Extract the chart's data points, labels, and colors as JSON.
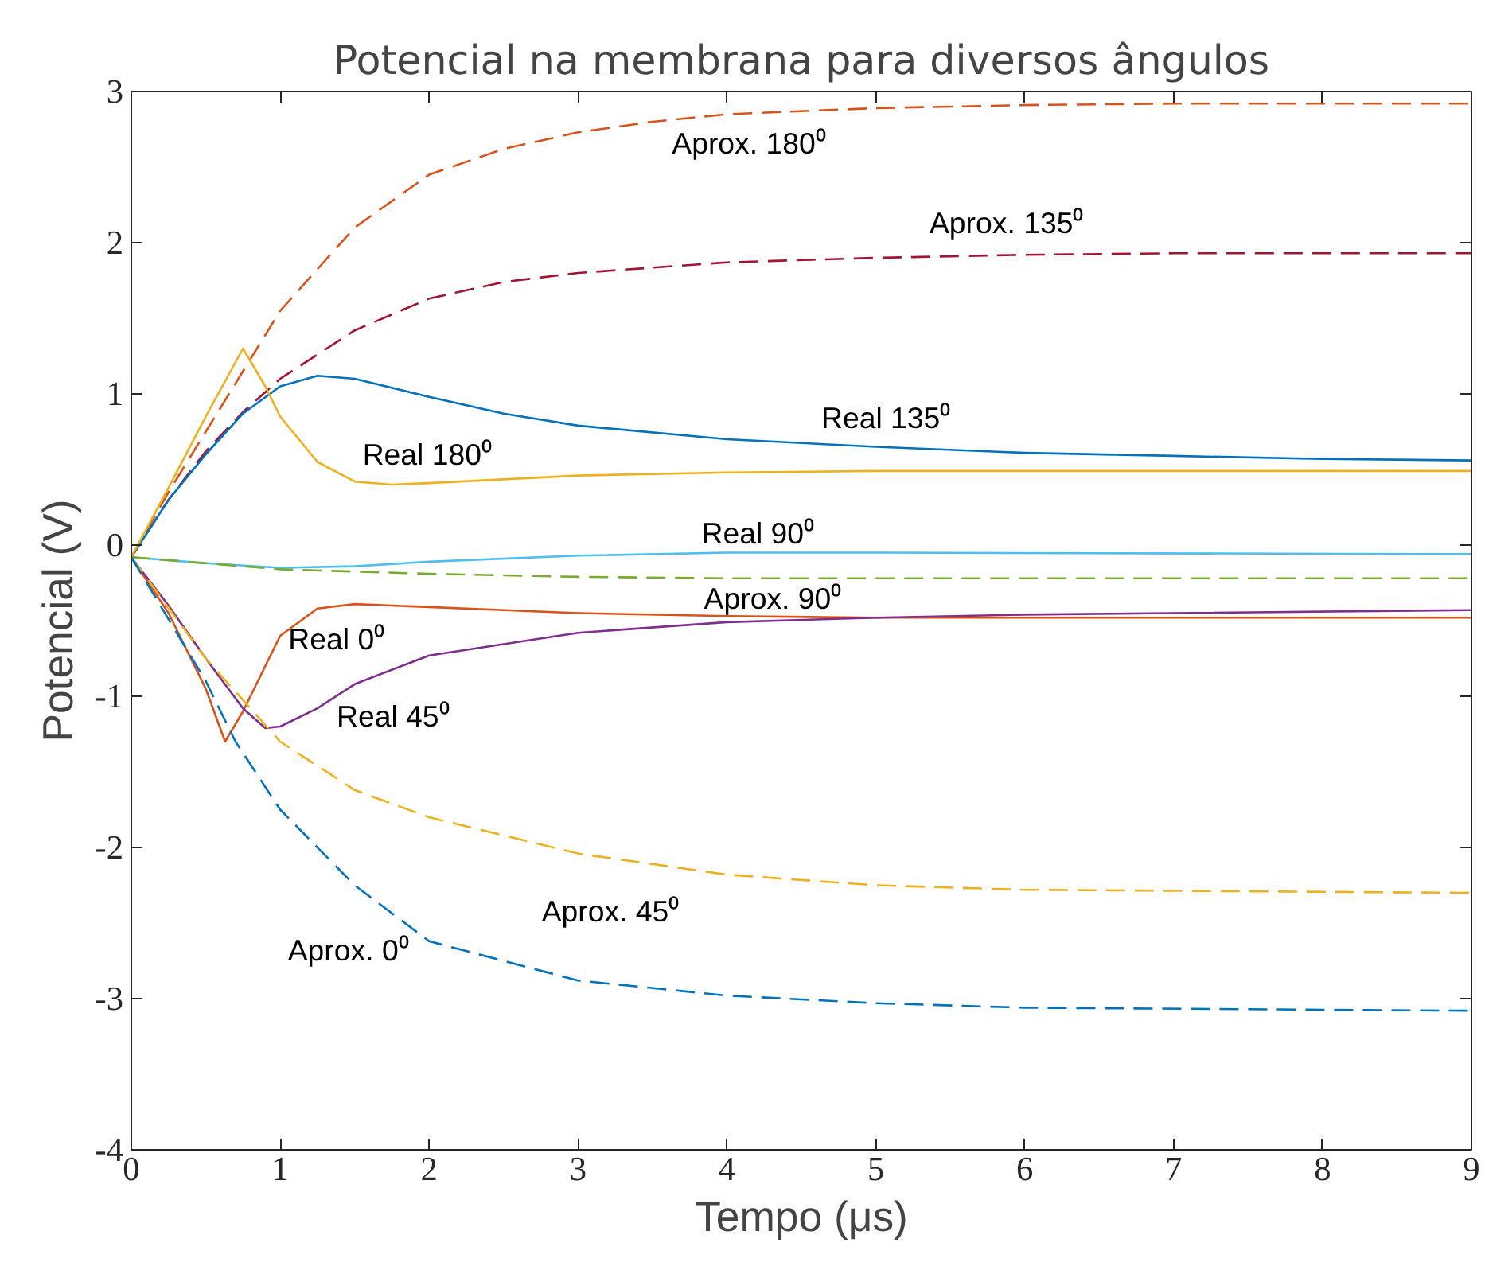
{
  "chart_data": {
    "type": "line",
    "title": "Potencial na membrana para diversos ângulos",
    "xlabel": "Tempo (μs)",
    "ylabel": "Potencial (V)",
    "xlim": [
      0,
      9
    ],
    "ylim": [
      -4,
      3
    ],
    "xticks": [
      0,
      1,
      2,
      3,
      4,
      5,
      6,
      7,
      8,
      9
    ],
    "yticks": [
      -4,
      -3,
      -2,
      -1,
      0,
      1,
      2,
      3
    ],
    "grid": false,
    "series": [
      {
        "name": "Aprox. 180⁰",
        "color": "#d95319",
        "line_style": "dashed",
        "x": [
          0,
          0.25,
          0.5,
          0.75,
          1,
          1.5,
          2,
          2.5,
          3,
          3.5,
          4,
          5,
          6,
          7,
          8,
          9
        ],
        "values": [
          -0.08,
          0.35,
          0.75,
          1.15,
          1.55,
          2.1,
          2.45,
          2.62,
          2.73,
          2.8,
          2.85,
          2.89,
          2.91,
          2.92,
          2.92,
          2.92
        ]
      },
      {
        "name": "Aprox. 135⁰",
        "color": "#a2142f",
        "line_style": "dashed",
        "x": [
          0,
          0.25,
          0.5,
          0.75,
          1,
          1.5,
          2,
          2.5,
          3,
          4,
          5,
          6,
          7,
          9
        ],
        "values": [
          -0.08,
          0.3,
          0.62,
          0.88,
          1.1,
          1.42,
          1.63,
          1.74,
          1.8,
          1.87,
          1.9,
          1.92,
          1.93,
          1.93
        ]
      },
      {
        "name": "Real 135⁰",
        "color": "#0072bd",
        "line_style": "solid",
        "x": [
          0,
          0.25,
          0.5,
          0.75,
          1,
          1.25,
          1.5,
          2,
          2.5,
          3,
          4,
          5,
          6,
          7,
          8,
          9
        ],
        "values": [
          -0.08,
          0.3,
          0.6,
          0.87,
          1.05,
          1.12,
          1.1,
          0.98,
          0.87,
          0.79,
          0.7,
          0.65,
          0.61,
          0.59,
          0.57,
          0.56
        ]
      },
      {
        "name": "Real 180⁰",
        "color": "#edb120",
        "line_style": "solid",
        "x": [
          0,
          0.25,
          0.5,
          0.75,
          0.9,
          1,
          1.25,
          1.5,
          1.75,
          2,
          3,
          4,
          5,
          9
        ],
        "values": [
          -0.08,
          0.38,
          0.85,
          1.3,
          1.05,
          0.85,
          0.55,
          0.42,
          0.4,
          0.41,
          0.46,
          0.48,
          0.49,
          0.49
        ]
      },
      {
        "name": "Real 90⁰",
        "color": "#4dbeee",
        "line_style": "solid",
        "x": [
          0,
          0.5,
          1,
          1.5,
          2,
          3,
          4,
          5,
          9
        ],
        "values": [
          -0.08,
          -0.12,
          -0.15,
          -0.14,
          -0.11,
          -0.07,
          -0.05,
          -0.05,
          -0.06
        ]
      },
      {
        "name": "Aprox. 90⁰",
        "color": "#77ac30",
        "line_style": "dashed",
        "x": [
          0,
          0.5,
          1,
          2,
          3,
          4,
          9
        ],
        "values": [
          -0.08,
          -0.12,
          -0.16,
          -0.19,
          -0.21,
          -0.22,
          -0.22
        ]
      },
      {
        "name": "Real 0⁰",
        "color": "#d95319",
        "line_style": "solid",
        "x": [
          0,
          0.25,
          0.5,
          0.63,
          0.75,
          1,
          1.25,
          1.5,
          2,
          3,
          4,
          5,
          9
        ],
        "values": [
          -0.08,
          -0.45,
          -0.95,
          -1.3,
          -1.1,
          -0.6,
          -0.42,
          -0.39,
          -0.41,
          -0.45,
          -0.47,
          -0.48,
          -0.48
        ]
      },
      {
        "name": "Real 45⁰",
        "color": "#7e2f8e",
        "line_style": "solid",
        "x": [
          0,
          0.25,
          0.5,
          0.75,
          0.9,
          1,
          1.25,
          1.5,
          2,
          3,
          4,
          5,
          6,
          7,
          9
        ],
        "values": [
          -0.08,
          -0.4,
          -0.75,
          -1.08,
          -1.21,
          -1.2,
          -1.08,
          -0.92,
          -0.73,
          -0.58,
          -0.51,
          -0.48,
          -0.46,
          -0.45,
          -0.43
        ]
      },
      {
        "name": "Aprox. 45⁰",
        "color": "#edb120",
        "line_style": "dashed",
        "x": [
          0,
          0.5,
          1,
          1.5,
          2,
          3,
          4,
          5,
          6,
          9
        ],
        "values": [
          -0.08,
          -0.75,
          -1.3,
          -1.62,
          -1.8,
          -2.04,
          -2.18,
          -2.25,
          -2.28,
          -2.3
        ]
      },
      {
        "name": "Aprox. 0⁰",
        "color": "#0072bd",
        "line_style": "dashed",
        "x": [
          0,
          0.5,
          0.7,
          1,
          1.5,
          2,
          3,
          4,
          5,
          6,
          9
        ],
        "values": [
          -0.08,
          -0.9,
          -1.3,
          -1.75,
          -2.25,
          -2.62,
          -2.88,
          -2.98,
          -3.03,
          -3.06,
          -3.08
        ]
      }
    ]
  }
}
